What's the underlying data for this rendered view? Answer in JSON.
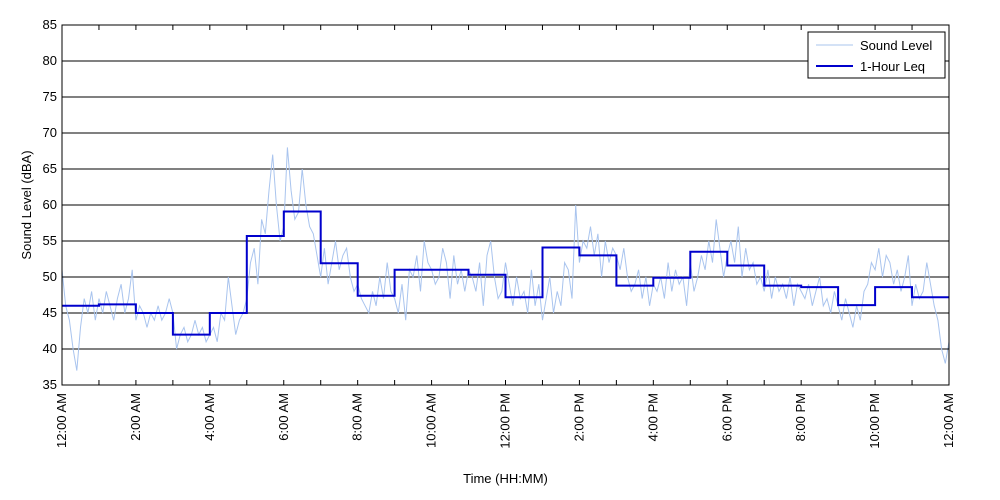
{
  "chart_data": {
    "type": "line",
    "title": "",
    "xlabel": "Time (HH:MM)",
    "ylabel": "Sound Level (dBA)",
    "xlim": [
      0,
      24
    ],
    "ylim": [
      35,
      85
    ],
    "yticks": [
      35,
      40,
      45,
      50,
      55,
      60,
      65,
      70,
      75,
      80,
      85
    ],
    "xticks": [
      0,
      1,
      2,
      3,
      4,
      5,
      6,
      7,
      8,
      9,
      10,
      11,
      12,
      13,
      14,
      15,
      16,
      17,
      18,
      19,
      20,
      21,
      22,
      23,
      24
    ],
    "xtick_labels": [
      {
        "x": 0,
        "label": "12:00 AM"
      },
      {
        "x": 2,
        "label": "2:00 AM"
      },
      {
        "x": 4,
        "label": "4:00 AM"
      },
      {
        "x": 6,
        "label": "6:00 AM"
      },
      {
        "x": 8,
        "label": "8:00 AM"
      },
      {
        "x": 10,
        "label": "10:00 AM"
      },
      {
        "x": 12,
        "label": "12:00 PM"
      },
      {
        "x": 14,
        "label": "2:00 PM"
      },
      {
        "x": 16,
        "label": "4:00 PM"
      },
      {
        "x": 18,
        "label": "6:00 PM"
      },
      {
        "x": 20,
        "label": "8:00 PM"
      },
      {
        "x": 22,
        "label": "10:00 PM"
      },
      {
        "x": 24,
        "label": "12:00 AM"
      }
    ],
    "grid": "horizontal",
    "legend_position": "top-right",
    "series": [
      {
        "name": "Sound Level",
        "color": "#a9c4ee",
        "style": "thin-line",
        "x": [
          0.0,
          0.1,
          0.2,
          0.3,
          0.4,
          0.5,
          0.6,
          0.7,
          0.8,
          0.9,
          1.0,
          1.1,
          1.2,
          1.3,
          1.4,
          1.5,
          1.6,
          1.7,
          1.8,
          1.9,
          2.0,
          2.1,
          2.2,
          2.3,
          2.4,
          2.5,
          2.6,
          2.7,
          2.8,
          2.9,
          3.0,
          3.1,
          3.2,
          3.3,
          3.4,
          3.5,
          3.6,
          3.7,
          3.8,
          3.9,
          4.0,
          4.1,
          4.2,
          4.3,
          4.4,
          4.5,
          4.6,
          4.7,
          4.8,
          4.9,
          5.0,
          5.1,
          5.2,
          5.3,
          5.4,
          5.5,
          5.6,
          5.7,
          5.8,
          5.9,
          6.0,
          6.1,
          6.2,
          6.3,
          6.4,
          6.5,
          6.6,
          6.7,
          6.8,
          6.9,
          7.0,
          7.1,
          7.2,
          7.3,
          7.4,
          7.5,
          7.6,
          7.7,
          7.8,
          7.9,
          8.0,
          8.1,
          8.2,
          8.3,
          8.4,
          8.5,
          8.6,
          8.7,
          8.8,
          8.9,
          9.0,
          9.1,
          9.2,
          9.3,
          9.4,
          9.5,
          9.6,
          9.7,
          9.8,
          9.9,
          10.0,
          10.1,
          10.2,
          10.3,
          10.4,
          10.5,
          10.6,
          10.7,
          10.8,
          10.9,
          11.0,
          11.1,
          11.2,
          11.3,
          11.4,
          11.5,
          11.6,
          11.7,
          11.8,
          11.9,
          12.0,
          12.1,
          12.2,
          12.3,
          12.4,
          12.5,
          12.6,
          12.7,
          12.8,
          12.9,
          13.0,
          13.1,
          13.2,
          13.3,
          13.4,
          13.5,
          13.6,
          13.7,
          13.8,
          13.9,
          14.0,
          14.1,
          14.2,
          14.3,
          14.4,
          14.5,
          14.6,
          14.7,
          14.8,
          14.9,
          15.0,
          15.1,
          15.2,
          15.3,
          15.4,
          15.5,
          15.6,
          15.7,
          15.8,
          15.9,
          16.0,
          16.1,
          16.2,
          16.3,
          16.4,
          16.5,
          16.6,
          16.7,
          16.8,
          16.9,
          17.0,
          17.1,
          17.2,
          17.3,
          17.4,
          17.5,
          17.6,
          17.7,
          17.8,
          17.9,
          18.0,
          18.1,
          18.2,
          18.3,
          18.4,
          18.5,
          18.6,
          18.7,
          18.8,
          18.9,
          19.0,
          19.1,
          19.2,
          19.3,
          19.4,
          19.5,
          19.6,
          19.7,
          19.8,
          19.9,
          20.0,
          20.1,
          20.2,
          20.3,
          20.4,
          20.5,
          20.6,
          20.7,
          20.8,
          20.9,
          21.0,
          21.1,
          21.2,
          21.3,
          21.4,
          21.5,
          21.6,
          21.7,
          21.8,
          21.9,
          22.0,
          22.1,
          22.2,
          22.3,
          22.4,
          22.5,
          22.6,
          22.7,
          22.8,
          22.9,
          23.0,
          23.1,
          23.2,
          23.3,
          23.4,
          23.5,
          23.6,
          23.7,
          23.8,
          23.9,
          24.0
        ],
        "y": [
          51,
          46,
          44,
          40,
          37,
          43,
          47,
          45,
          48,
          44,
          47,
          45,
          48,
          46,
          44,
          47,
          49,
          45,
          47,
          51,
          44,
          46,
          45,
          43,
          45,
          44,
          46,
          44,
          45,
          47,
          45,
          40,
          42,
          43,
          41,
          42,
          44,
          42,
          43,
          41,
          42,
          43,
          41,
          45,
          44,
          50,
          46,
          42,
          44,
          45,
          47,
          52,
          54,
          49,
          58,
          56,
          62,
          67,
          60,
          55,
          57,
          68,
          62,
          58,
          59,
          65,
          60,
          57,
          56,
          53,
          50,
          54,
          49,
          52,
          55,
          51,
          53,
          54,
          50,
          48,
          49,
          47,
          46,
          45,
          48,
          46,
          50,
          47,
          52,
          48,
          47,
          45,
          49,
          44,
          51,
          50,
          53,
          48,
          55,
          52,
          51,
          49,
          50,
          54,
          52,
          47,
          53,
          49,
          51,
          48,
          51,
          50,
          48,
          52,
          46,
          53,
          55,
          50,
          47,
          48,
          52,
          49,
          46,
          50,
          47,
          48,
          45,
          51,
          46,
          49,
          44,
          47,
          50,
          45,
          48,
          46,
          52,
          51,
          47,
          60,
          52,
          55,
          54,
          57,
          53,
          56,
          50,
          55,
          52,
          54,
          53,
          51,
          54,
          50,
          48,
          49,
          51,
          47,
          50,
          46,
          49,
          48,
          50,
          47,
          52,
          48,
          51,
          49,
          50,
          46,
          52,
          48,
          50,
          53,
          51,
          55,
          52,
          58,
          54,
          50,
          53,
          55,
          52,
          57,
          50,
          54,
          51,
          52,
          49,
          50,
          48,
          51,
          47,
          50,
          48,
          49,
          47,
          50,
          46,
          49,
          48,
          47,
          49,
          46,
          48,
          50,
          46,
          47,
          45,
          48,
          46,
          44,
          47,
          45,
          43,
          46,
          44,
          48,
          49,
          52,
          51,
          54,
          50,
          53,
          52,
          49,
          51,
          48,
          50,
          53,
          46,
          49,
          47,
          48,
          52,
          49,
          46,
          44,
          40,
          38,
          41
        ]
      },
      {
        "name": "1-Hour Leq",
        "color": "#0000cc",
        "style": "step",
        "x": [
          0,
          1,
          2,
          3,
          4,
          5,
          6,
          7,
          8,
          9,
          10,
          11,
          12,
          13,
          14,
          15,
          16,
          17,
          18,
          19,
          20,
          21,
          22,
          23
        ],
        "y": [
          46.0,
          46.2,
          45.0,
          42.0,
          45.0,
          55.7,
          59.1,
          51.9,
          47.4,
          51.0,
          51.0,
          50.3,
          47.2,
          54.1,
          53.0,
          48.8,
          49.9,
          53.5,
          51.6,
          48.8,
          48.6,
          46.1,
          48.6,
          47.2
        ]
      }
    ]
  }
}
